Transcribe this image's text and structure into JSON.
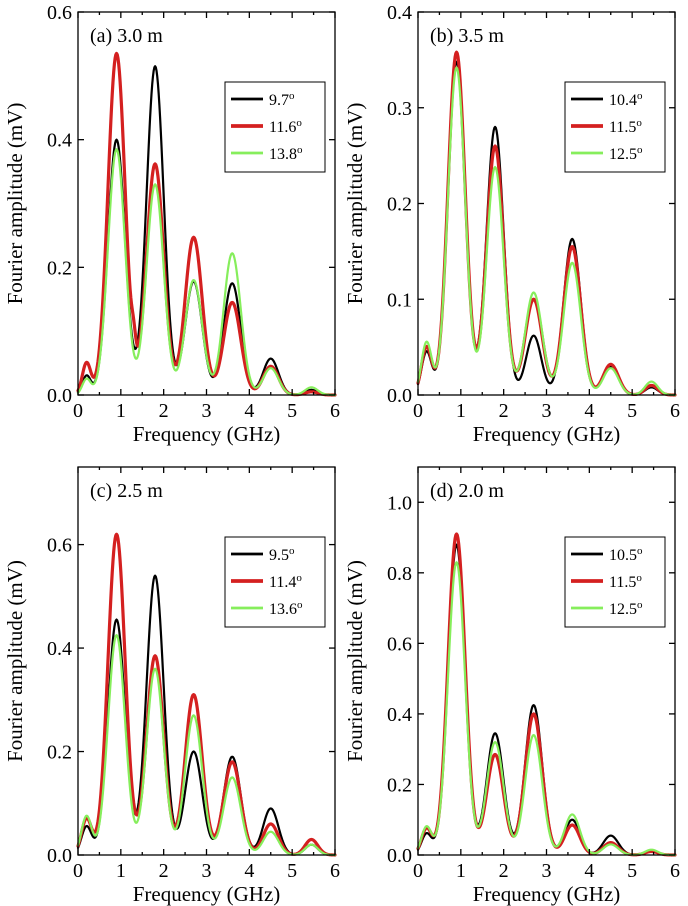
{
  "chart_data": [
    {
      "type": "line",
      "title": "(a) 3.0 m",
      "xlabel": "Frequency (GHz)",
      "ylabel": "Fourier amplitude (mV)",
      "xlim": [
        0,
        6
      ],
      "ylim": [
        0,
        0.6
      ],
      "xticks": [
        "0",
        "1",
        "2",
        "3",
        "4",
        "5",
        "6"
      ],
      "yticks": [
        "0.0",
        "0.2",
        "0.4",
        "0.6"
      ],
      "legend": "top-right",
      "series": [
        {
          "name": "9.7°",
          "label": "9.7",
          "sup": "o",
          "color": "#000000",
          "width": 2.2,
          "peaks": [
            {
              "x": 0.2,
              "y": 0.03,
              "w": 0.1
            },
            {
              "x": 0.9,
              "y": 0.4,
              "w": 0.2
            },
            {
              "x": 1.8,
              "y": 0.515,
              "w": 0.2
            },
            {
              "x": 2.7,
              "y": 0.178,
              "w": 0.2
            },
            {
              "x": 3.6,
              "y": 0.175,
              "w": 0.2
            },
            {
              "x": 4.5,
              "y": 0.057,
              "w": 0.18
            },
            {
              "x": 5.45,
              "y": 0.008,
              "w": 0.15
            }
          ]
        },
        {
          "name": "11.6°",
          "label": "11.6",
          "sup": "o",
          "color": "#d42020",
          "width": 3.2,
          "peaks": [
            {
              "x": 0.2,
              "y": 0.05,
              "w": 0.1
            },
            {
              "x": 0.9,
              "y": 0.535,
              "w": 0.2
            },
            {
              "x": 1.3,
              "y": 0.03,
              "w": 0.05
            },
            {
              "x": 1.8,
              "y": 0.362,
              "w": 0.2
            },
            {
              "x": 2.7,
              "y": 0.247,
              "w": 0.2
            },
            {
              "x": 3.6,
              "y": 0.145,
              "w": 0.2
            },
            {
              "x": 4.5,
              "y": 0.045,
              "w": 0.18
            },
            {
              "x": 5.45,
              "y": 0.005,
              "w": 0.15
            }
          ]
        },
        {
          "name": "13.8°",
          "label": "13.8",
          "sup": "o",
          "color": "#86ee5c",
          "width": 2.2,
          "peaks": [
            {
              "x": 0.2,
              "y": 0.025,
              "w": 0.1
            },
            {
              "x": 0.9,
              "y": 0.385,
              "w": 0.2
            },
            {
              "x": 1.8,
              "y": 0.33,
              "w": 0.2
            },
            {
              "x": 2.7,
              "y": 0.18,
              "w": 0.2
            },
            {
              "x": 3.6,
              "y": 0.222,
              "w": 0.2
            },
            {
              "x": 4.5,
              "y": 0.042,
              "w": 0.18
            },
            {
              "x": 5.45,
              "y": 0.012,
              "w": 0.15
            }
          ]
        }
      ]
    },
    {
      "type": "line",
      "title": "(b) 3.5 m",
      "xlabel": "Frequency (GHz)",
      "ylabel": "Fourier amplitude (mV)",
      "xlim": [
        0,
        6
      ],
      "ylim": [
        0,
        0.4
      ],
      "xticks": [
        "0",
        "1",
        "2",
        "3",
        "4",
        "5",
        "6"
      ],
      "yticks": [
        "0.0",
        "0.1",
        "0.2",
        "0.3",
        "0.4"
      ],
      "legend": "top-right",
      "series": [
        {
          "name": "10.4°",
          "label": "10.4",
          "sup": "o",
          "color": "#000000",
          "width": 2.2,
          "peaks": [
            {
              "x": 0.2,
              "y": 0.045,
              "w": 0.12
            },
            {
              "x": 0.9,
              "y": 0.348,
              "w": 0.2
            },
            {
              "x": 1.8,
              "y": 0.28,
              "w": 0.2
            },
            {
              "x": 2.7,
              "y": 0.062,
              "w": 0.18
            },
            {
              "x": 3.6,
              "y": 0.163,
              "w": 0.2
            },
            {
              "x": 4.5,
              "y": 0.03,
              "w": 0.18
            },
            {
              "x": 5.45,
              "y": 0.008,
              "w": 0.15
            }
          ]
        },
        {
          "name": "11.5°",
          "label": "11.5",
          "sup": "o",
          "color": "#d42020",
          "width": 3.2,
          "peaks": [
            {
              "x": 0.2,
              "y": 0.05,
              "w": 0.12
            },
            {
              "x": 0.9,
              "y": 0.358,
              "w": 0.2
            },
            {
              "x": 1.8,
              "y": 0.26,
              "w": 0.2
            },
            {
              "x": 2.7,
              "y": 0.1,
              "w": 0.2
            },
            {
              "x": 3.6,
              "y": 0.155,
              "w": 0.2
            },
            {
              "x": 4.5,
              "y": 0.032,
              "w": 0.18
            },
            {
              "x": 5.45,
              "y": 0.01,
              "w": 0.15
            }
          ]
        },
        {
          "name": "12.5°",
          "label": "12.5",
          "sup": "o",
          "color": "#86ee5c",
          "width": 2.2,
          "peaks": [
            {
              "x": 0.2,
              "y": 0.055,
              "w": 0.12
            },
            {
              "x": 0.9,
              "y": 0.342,
              "w": 0.2
            },
            {
              "x": 1.8,
              "y": 0.238,
              "w": 0.2
            },
            {
              "x": 2.7,
              "y": 0.107,
              "w": 0.2
            },
            {
              "x": 3.6,
              "y": 0.138,
              "w": 0.2
            },
            {
              "x": 4.5,
              "y": 0.028,
              "w": 0.18
            },
            {
              "x": 5.45,
              "y": 0.014,
              "w": 0.15
            }
          ]
        }
      ]
    },
    {
      "type": "line",
      "title": "(c) 2.5 m",
      "xlabel": "Frequency (GHz)",
      "ylabel": "Fourier amplitude (mV)",
      "xlim": [
        0,
        6
      ],
      "ylim": [
        0,
        0.75
      ],
      "xticks": [
        "0",
        "1",
        "2",
        "3",
        "4",
        "5",
        "6"
      ],
      "yticks": [
        "0.0",
        "0.2",
        "0.4",
        "0.6"
      ],
      "legend": "top-right",
      "series": [
        {
          "name": "9.5°",
          "label": "9.5",
          "sup": "o",
          "color": "#000000",
          "width": 2.2,
          "peaks": [
            {
              "x": 0.2,
              "y": 0.055,
              "w": 0.12
            },
            {
              "x": 0.9,
              "y": 0.455,
              "w": 0.2
            },
            {
              "x": 1.8,
              "y": 0.54,
              "w": 0.2
            },
            {
              "x": 2.7,
              "y": 0.2,
              "w": 0.2
            },
            {
              "x": 3.6,
              "y": 0.19,
              "w": 0.2
            },
            {
              "x": 4.5,
              "y": 0.09,
              "w": 0.18
            },
            {
              "x": 5.45,
              "y": 0.02,
              "w": 0.15
            }
          ]
        },
        {
          "name": "11.4°",
          "label": "11.4",
          "sup": "o",
          "color": "#d42020",
          "width": 3.2,
          "peaks": [
            {
              "x": 0.2,
              "y": 0.07,
              "w": 0.12
            },
            {
              "x": 0.9,
              "y": 0.62,
              "w": 0.2
            },
            {
              "x": 1.8,
              "y": 0.385,
              "w": 0.2
            },
            {
              "x": 2.7,
              "y": 0.31,
              "w": 0.2
            },
            {
              "x": 3.6,
              "y": 0.18,
              "w": 0.2
            },
            {
              "x": 4.5,
              "y": 0.06,
              "w": 0.18
            },
            {
              "x": 5.45,
              "y": 0.03,
              "w": 0.15
            }
          ]
        },
        {
          "name": "13.6°",
          "label": "13.6",
          "sup": "o",
          "color": "#86ee5c",
          "width": 2.2,
          "peaks": [
            {
              "x": 0.2,
              "y": 0.075,
              "w": 0.12
            },
            {
              "x": 0.9,
              "y": 0.425,
              "w": 0.2
            },
            {
              "x": 1.8,
              "y": 0.36,
              "w": 0.2
            },
            {
              "x": 2.7,
              "y": 0.27,
              "w": 0.2
            },
            {
              "x": 3.6,
              "y": 0.15,
              "w": 0.2
            },
            {
              "x": 4.5,
              "y": 0.045,
              "w": 0.18
            },
            {
              "x": 5.45,
              "y": 0.02,
              "w": 0.15
            }
          ]
        }
      ]
    },
    {
      "type": "line",
      "title": "(d) 2.0 m",
      "xlabel": "Frequency (GHz)",
      "ylabel": "Fourier amplitude (mV)",
      "xlim": [
        0,
        6
      ],
      "ylim": [
        0,
        1.1
      ],
      "xticks": [
        "0",
        "1",
        "2",
        "3",
        "4",
        "5",
        "6"
      ],
      "yticks": [
        "0.0",
        "0.2",
        "0.4",
        "0.6",
        "0.8",
        "1.0"
      ],
      "legend": "top-right",
      "series": [
        {
          "name": "10.5°",
          "label": "10.5",
          "sup": "o",
          "color": "#000000",
          "width": 2.2,
          "peaks": [
            {
              "x": 0.2,
              "y": 0.06,
              "w": 0.12
            },
            {
              "x": 0.9,
              "y": 0.88,
              "w": 0.2
            },
            {
              "x": 1.8,
              "y": 0.345,
              "w": 0.2
            },
            {
              "x": 2.7,
              "y": 0.425,
              "w": 0.2
            },
            {
              "x": 3.6,
              "y": 0.1,
              "w": 0.18
            },
            {
              "x": 4.5,
              "y": 0.055,
              "w": 0.18
            },
            {
              "x": 5.45,
              "y": 0.012,
              "w": 0.15
            }
          ]
        },
        {
          "name": "11.5°",
          "label": "11.5",
          "sup": "o",
          "color": "#d42020",
          "width": 3.2,
          "peaks": [
            {
              "x": 0.2,
              "y": 0.075,
              "w": 0.12
            },
            {
              "x": 0.9,
              "y": 0.91,
              "w": 0.2
            },
            {
              "x": 1.8,
              "y": 0.285,
              "w": 0.2
            },
            {
              "x": 2.7,
              "y": 0.4,
              "w": 0.2
            },
            {
              "x": 3.6,
              "y": 0.085,
              "w": 0.18
            },
            {
              "x": 4.5,
              "y": 0.035,
              "w": 0.18
            },
            {
              "x": 5.45,
              "y": 0.01,
              "w": 0.15
            }
          ]
        },
        {
          "name": "12.5°",
          "label": "12.5",
          "sup": "o",
          "color": "#86ee5c",
          "width": 2.2,
          "peaks": [
            {
              "x": 0.2,
              "y": 0.08,
              "w": 0.12
            },
            {
              "x": 0.9,
              "y": 0.83,
              "w": 0.2
            },
            {
              "x": 1.8,
              "y": 0.32,
              "w": 0.2
            },
            {
              "x": 2.7,
              "y": 0.34,
              "w": 0.2
            },
            {
              "x": 3.6,
              "y": 0.115,
              "w": 0.18
            },
            {
              "x": 4.5,
              "y": 0.03,
              "w": 0.18
            },
            {
              "x": 5.45,
              "y": 0.015,
              "w": 0.15
            }
          ]
        }
      ]
    }
  ]
}
